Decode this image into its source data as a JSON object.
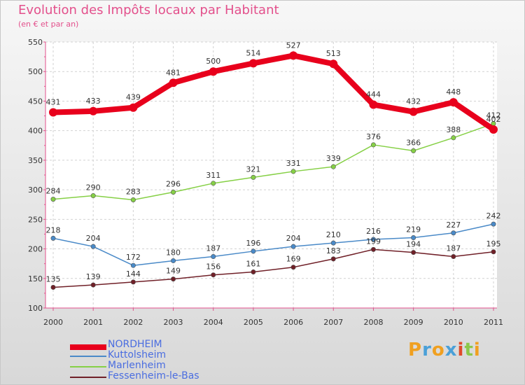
{
  "title": "Evolution des Impôts locaux par Habitant",
  "subtitle": "(en € et par an)",
  "logo": {
    "text": "Proxiti",
    "letters": [
      "P",
      "r",
      "o",
      "x",
      "i",
      "t",
      "i"
    ],
    "colors": [
      "#f0a020",
      "#4aa0d8",
      "#f0a020",
      "#4aa0d8",
      "#e04a2a",
      "#8cc84a",
      "#f0a020"
    ]
  },
  "chart_data": {
    "type": "line",
    "title": "Evolution des Impôts locaux par Habitant",
    "subtitle": "(en € et par an)",
    "xlabel": "",
    "ylabel": "",
    "categories": [
      "2000",
      "2001",
      "2002",
      "2003",
      "2004",
      "2005",
      "2006",
      "2007",
      "2008",
      "2009",
      "2010",
      "2011"
    ],
    "ylim": [
      100,
      550
    ],
    "yticks": [
      100,
      150,
      200,
      250,
      300,
      350,
      400,
      450,
      500,
      550
    ],
    "grid": true,
    "legend_position": "bottom-left",
    "series": [
      {
        "name": "NORDHEIM",
        "color": "#e8001c",
        "values": [
          431,
          433,
          439,
          481,
          500,
          514,
          527,
          513,
          444,
          432,
          448,
          402
        ],
        "labels": [
          "431",
          "433",
          "439",
          "481",
          "500",
          "514",
          "527",
          "513",
          "444",
          "432",
          "448",
          "402"
        ]
      },
      {
        "name": "Kuttolsheim",
        "color": "#4a8ac8",
        "values": [
          218,
          204,
          172,
          180,
          187,
          196,
          204,
          210,
          216,
          219,
          227,
          242
        ],
        "labels": [
          "218",
          "204",
          "172",
          "180",
          "187",
          "196",
          "204",
          "210",
          "216",
          "219",
          "227",
          "242"
        ]
      },
      {
        "name": "Marlenheim",
        "color": "#86d046",
        "values": [
          284,
          290,
          283,
          296,
          311,
          321,
          331,
          339,
          376,
          366,
          388,
          412
        ],
        "labels": [
          "284",
          "290",
          "283",
          "296",
          "311",
          "321",
          "331",
          "339",
          "376",
          "366",
          "388",
          "412"
        ]
      },
      {
        "name": "Fessenheim-le-Bas",
        "color": "#702028",
        "values": [
          135,
          139,
          144,
          149,
          156,
          161,
          169,
          183,
          199,
          194,
          187,
          195
        ],
        "labels": [
          "135",
          "139",
          "144",
          "149",
          "156",
          "161",
          "169",
          "183",
          "199",
          "194",
          "187",
          "195"
        ]
      }
    ]
  }
}
